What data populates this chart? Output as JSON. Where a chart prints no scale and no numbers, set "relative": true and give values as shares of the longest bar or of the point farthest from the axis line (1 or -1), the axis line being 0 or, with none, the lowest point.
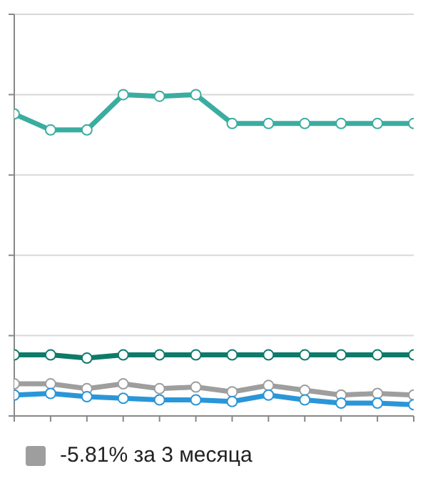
{
  "chart_data": {
    "type": "line",
    "relative": true,
    "categories": [
      null,
      null,
      null,
      null,
      null,
      null,
      null,
      null,
      null,
      null,
      null,
      null
    ],
    "series": [
      {
        "color": "#3aada0",
        "values": [
          0.94,
          0.89,
          0.89,
          1,
          0.995,
          1,
          0.91,
          0.91,
          0.91,
          0.91,
          0.91,
          0.91
        ]
      },
      {
        "color": "#0e7a6a",
        "values": [
          0.19,
          0.19,
          0.18,
          0.19,
          0.19,
          0.19,
          0.19,
          0.19,
          0.19,
          0.19,
          0.19,
          0.19
        ]
      },
      {
        "name": "-5.81% за 3 месяца",
        "color": "#9e9e9e",
        "values": [
          0.1,
          0.1,
          0.085,
          0.1,
          0.085,
          0.09,
          0.075,
          0.095,
          0.08,
          0.065,
          0.07,
          0.065
        ]
      },
      {
        "color": "#2a96d8",
        "values": [
          0.065,
          0.07,
          0.06,
          0.055,
          0.05,
          0.05,
          0.045,
          0.065,
          0.05,
          0.04,
          0.04,
          0.035
        ]
      }
    ],
    "grid": "y",
    "legend": "bottom left",
    "marker": "circle",
    "line_style": "solid"
  }
}
